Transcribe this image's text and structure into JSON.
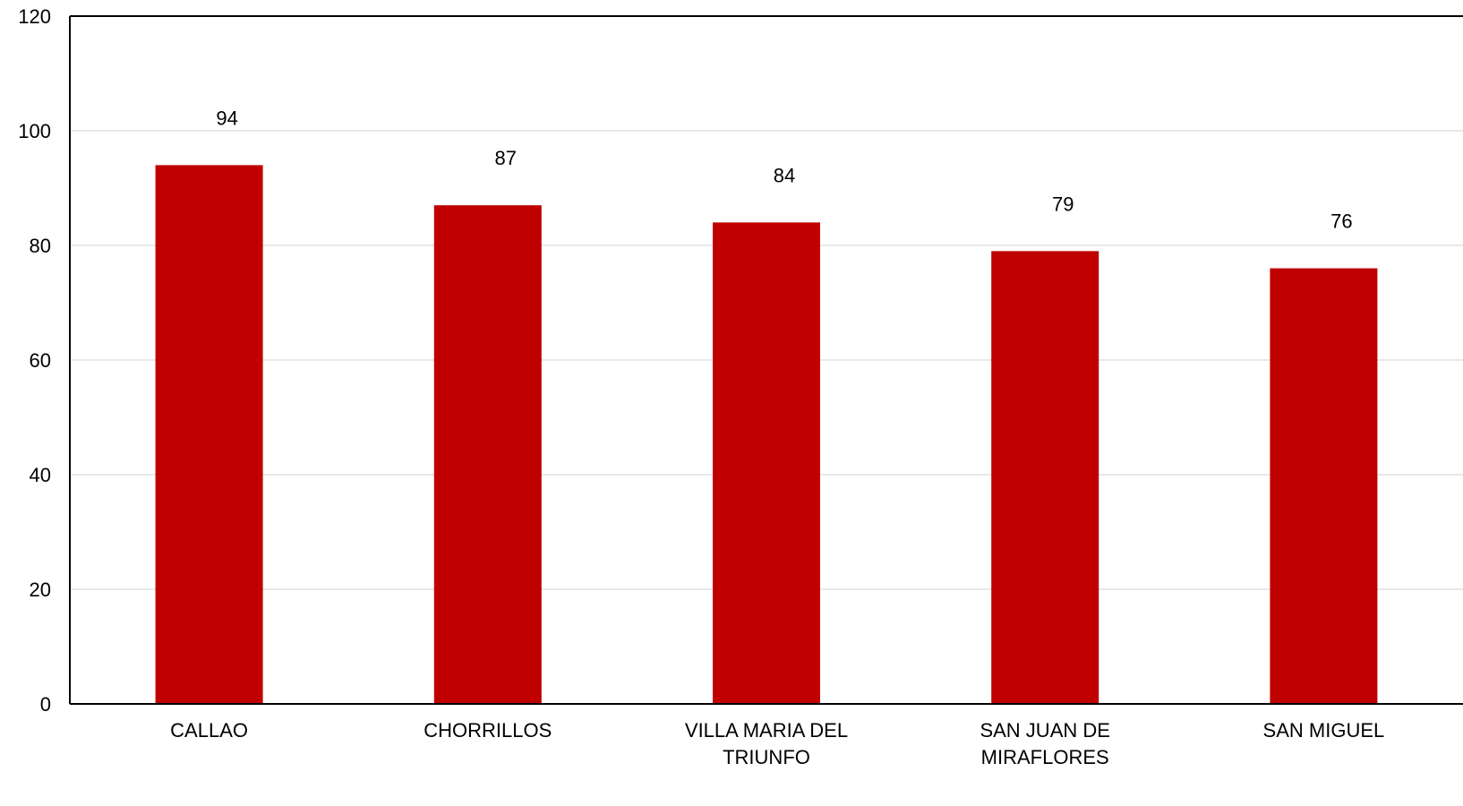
{
  "chart_data": {
    "type": "bar",
    "title": "",
    "xlabel": "",
    "ylabel": "",
    "categories": [
      [
        "CALLAO"
      ],
      [
        "CHORRILLOS"
      ],
      [
        "VILLA MARIA DEL",
        "TRIUNFO"
      ],
      [
        "SAN JUAN DE",
        "MIRAFLORES"
      ],
      [
        "SAN MIGUEL"
      ]
    ],
    "values": [
      94,
      87,
      84,
      79,
      76
    ],
    "ylim": [
      0,
      120
    ],
    "yticks": [
      0,
      20,
      40,
      60,
      80,
      100,
      120
    ],
    "grid": true,
    "legend": "none",
    "bar_color": "#C00000",
    "grid_color": "#D9D9D9",
    "axis_color": "#000000"
  }
}
